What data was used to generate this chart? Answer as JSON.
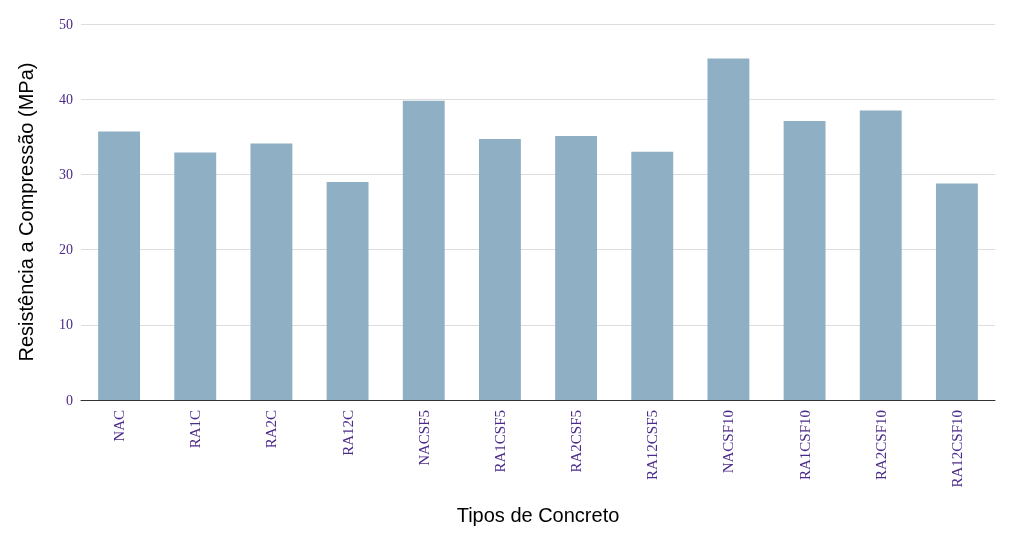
{
  "chart_data": {
    "type": "bar",
    "xlabel": "Tipos de Concreto",
    "ylabel": "Resistência a Compressão (MPa)",
    "categories": [
      "NAC",
      "RA1C",
      "RA2C",
      "RA12C",
      "NACSF5",
      "RA1CSF5",
      "RA2CSF5",
      "RA12CSF5",
      "NACSF10",
      "RA1CSF10",
      "RA2CSF10",
      "RA12CSF10"
    ],
    "values": [
      35.7,
      32.9,
      34.1,
      29.0,
      39.8,
      34.7,
      35.1,
      33.0,
      45.4,
      37.1,
      38.5,
      28.8
    ],
    "color": "#8fb0c4",
    "ylim": [
      0,
      50
    ],
    "yticks": [
      0,
      10,
      20,
      30,
      40,
      50
    ],
    "grid": "y"
  }
}
